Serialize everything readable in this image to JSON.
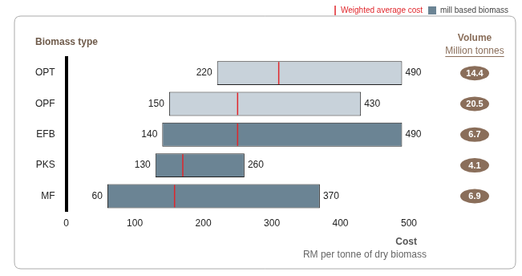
{
  "chart_data": {
    "type": "bar",
    "orientation": "horizontal",
    "y_label": "Biomass type",
    "x_label": "Cost",
    "x_sublabel": "RM per tonne of dry biomass",
    "categories": [
      "OPT",
      "OPF",
      "EFB",
      "PKS",
      "MF"
    ],
    "values": [
      [
        220,
        490
      ],
      [
        150,
        430
      ],
      [
        140,
        490
      ],
      [
        130,
        260
      ],
      [
        60,
        370
      ]
    ],
    "colors": [
      "#c8d2da",
      "#c8d2da",
      "#6b8494",
      "#6b8494",
      "#6b8494"
    ],
    "weighted_average": {
      "name": "Weighted average cost",
      "color": "#e0262b",
      "values": [
        310,
        250,
        250,
        170,
        158
      ]
    },
    "mill_based": {
      "name": "mill based biomass",
      "color": "#6b8494"
    },
    "volume": {
      "title": "Volume",
      "subtitle": "Million tonnes",
      "color": "#8a6e5a",
      "values": [
        14.4,
        20.5,
        6.7,
        4.1,
        6.9
      ]
    },
    "xlim": [
      0,
      500
    ],
    "xticks": [
      0,
      100,
      200,
      300,
      400,
      500
    ],
    "grid": false,
    "data_labels": true,
    "legend": "top right"
  }
}
